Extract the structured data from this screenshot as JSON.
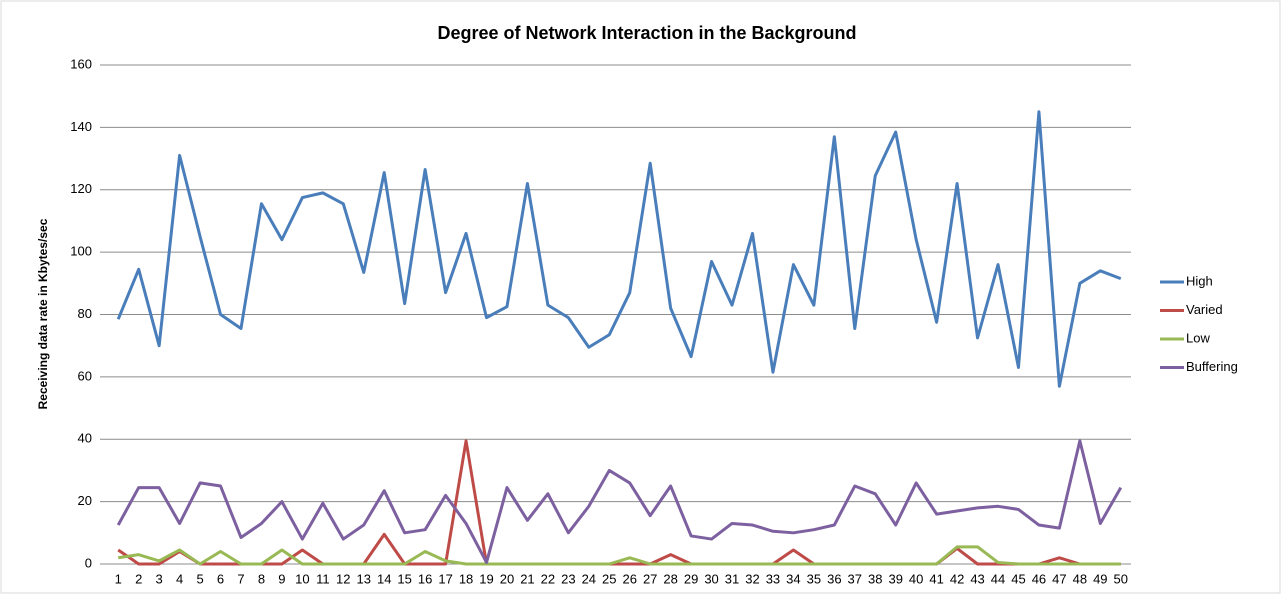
{
  "chart_data": {
    "type": "line",
    "title": "Degree of Network Interaction in the Background",
    "y_label": "Receiving data rate in Kbytes/sec",
    "categories": [
      "1",
      "2",
      "3",
      "4",
      "5",
      "6",
      "7",
      "8",
      "9",
      "10",
      "11",
      "12",
      "13",
      "14",
      "15",
      "16",
      "17",
      "18",
      "19",
      "20",
      "21",
      "22",
      "23",
      "24",
      "25",
      "26",
      "27",
      "28",
      "29",
      "30",
      "31",
      "32",
      "33",
      "34",
      "35",
      "36",
      "37",
      "38",
      "39",
      "40",
      "41",
      "42",
      "43",
      "44",
      "45",
      "46",
      "47",
      "48",
      "49",
      "50"
    ],
    "series": [
      {
        "name": "High",
        "color": "#4a7ebb",
        "values": [
          78.5,
          94.5,
          70,
          131,
          105,
          80,
          75.5,
          115.5,
          104,
          117.5,
          119,
          115.5,
          93.5,
          125.5,
          83.5,
          126.5,
          87,
          106,
          79,
          82.5,
          122,
          83,
          79,
          69.5,
          73.5,
          87,
          128.5,
          82,
          66.5,
          97,
          83,
          106,
          61.5,
          96,
          83,
          137,
          75.5,
          124.5,
          138.5,
          104,
          77.5,
          122,
          72.5,
          96,
          63,
          145,
          57,
          90,
          94,
          91.5
        ]
      },
      {
        "name": "Varied",
        "color": "#be4b48",
        "values": [
          4.5,
          0,
          0,
          4,
          0,
          0,
          0,
          0,
          0,
          4.5,
          0,
          0,
          0,
          9.5,
          0,
          0,
          0,
          39.5,
          0,
          0,
          0,
          0,
          0,
          0,
          0,
          0,
          0,
          3,
          0,
          0,
          0,
          0,
          0,
          4.5,
          0,
          0,
          0,
          0,
          0,
          0,
          0,
          5,
          0,
          0,
          0,
          0,
          2,
          0,
          0,
          0
        ]
      },
      {
        "name": "Low",
        "color": "#98b954",
        "values": [
          2,
          3,
          1,
          4.5,
          0,
          4,
          0,
          0,
          4.5,
          0,
          0,
          0,
          0,
          0,
          0,
          4,
          1,
          0,
          0,
          0,
          0,
          0,
          0,
          0,
          0,
          2,
          0,
          0,
          0,
          0,
          0,
          0,
          0,
          0,
          0,
          0,
          0,
          0,
          0,
          0,
          0,
          5.5,
          5.5,
          0.5,
          0,
          0,
          0,
          0,
          0,
          0
        ]
      },
      {
        "name": "Buffering",
        "color": "#7d60a0",
        "values": [
          12.5,
          24.5,
          24.5,
          13,
          26,
          25,
          8.5,
          13,
          20,
          8,
          19.5,
          8,
          12.5,
          23.5,
          10,
          11,
          22,
          13,
          0.5,
          24.5,
          14,
          22.5,
          10,
          18.5,
          30,
          26,
          15.5,
          25,
          9,
          8,
          13,
          12.5,
          10.5,
          10,
          11,
          12.5,
          25,
          22.5,
          12.5,
          26,
          16,
          17,
          18,
          18.5,
          17.5,
          12.5,
          11.5,
          39.5,
          13,
          24.5
        ]
      }
    ],
    "ylim": [
      0,
      160
    ],
    "yticks": [
      0,
      20,
      40,
      60,
      80,
      100,
      120,
      140,
      160
    ],
    "grid": true,
    "legend": "right"
  }
}
